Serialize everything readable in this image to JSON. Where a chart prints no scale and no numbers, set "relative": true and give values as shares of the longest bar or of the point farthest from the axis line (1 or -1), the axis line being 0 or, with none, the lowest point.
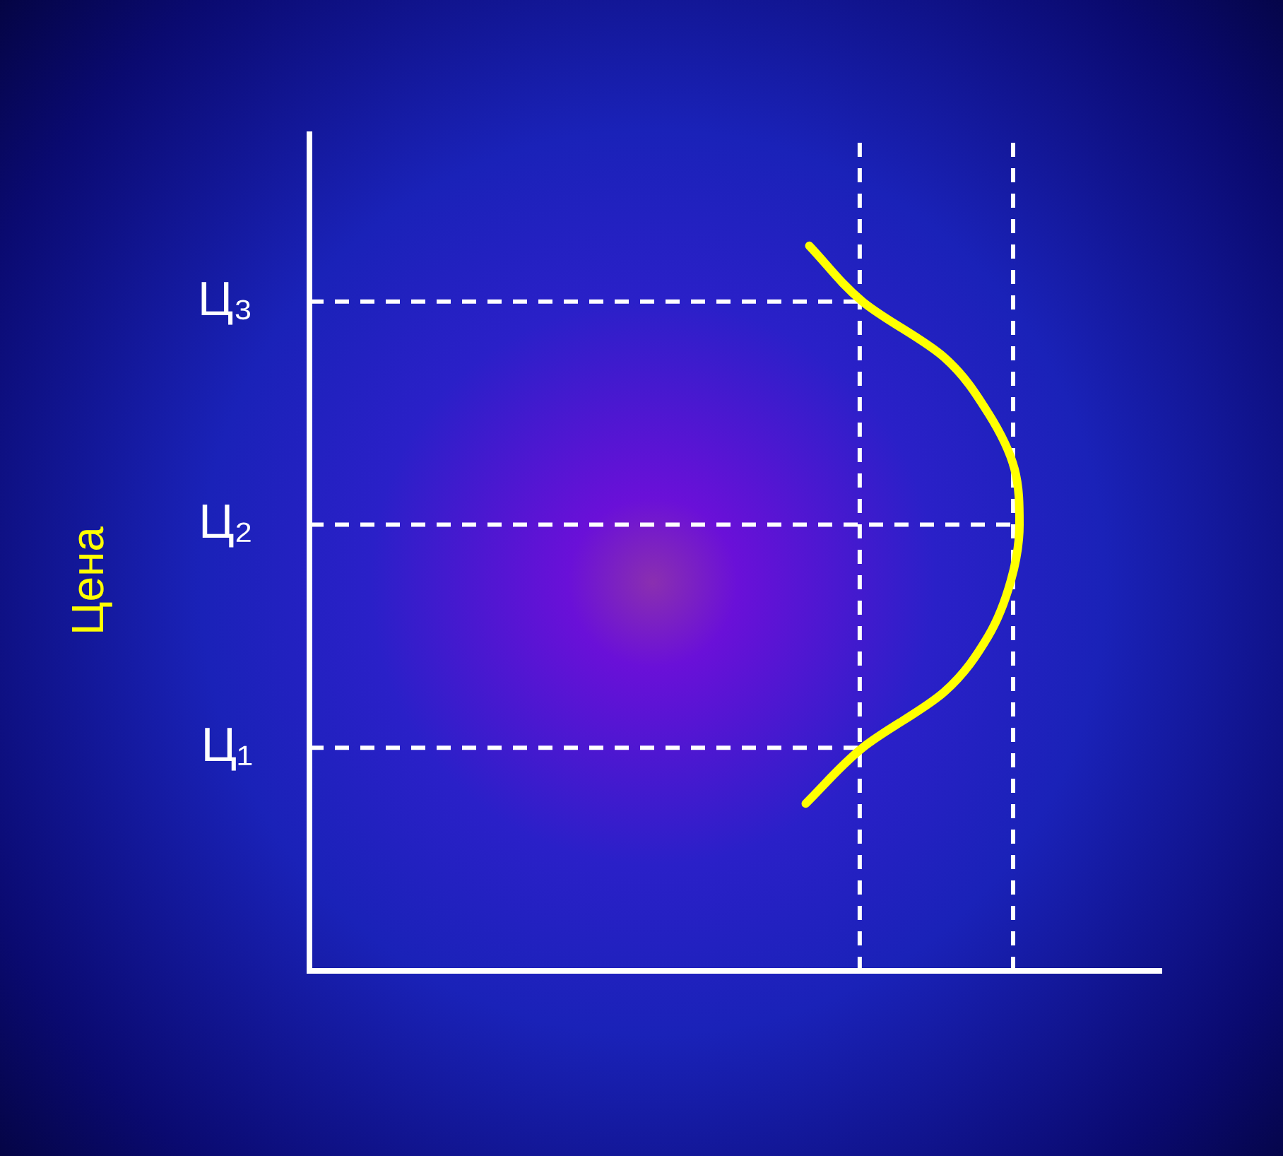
{
  "chart_data": {
    "type": "line",
    "orientation": "horizontal",
    "ylabel": "Цена",
    "relative": true,
    "tick_labels": "y",
    "grid": false,
    "legend": false,
    "marker": "none",
    "line_style": "solid",
    "categories": [
      null,
      null,
      null,
      "Ц₃",
      null,
      null,
      null,
      "Ц₂",
      null,
      null,
      null,
      "Ц₁",
      null,
      null,
      null,
      null
    ],
    "series": [
      {
        "color": "#ffff00",
        "values": [
          null,
          null,
          0.704,
          0.779,
          0.894,
          0.956,
          0.993,
          1,
          0.988,
          0.956,
          0.894,
          0.779,
          0.699,
          null,
          null,
          null
        ]
      }
    ],
    "ref_lines": [
      {
        "axis": "y",
        "value": "Ц₃",
        "color": "#ffffff",
        "line_style": "dashed"
      },
      {
        "axis": "y",
        "value": "Ц₂",
        "color": "#ffffff",
        "line_style": "dashed"
      },
      {
        "axis": "y",
        "value": "Ц₁",
        "color": "#ffffff",
        "line_style": "dashed"
      },
      {
        "axis": "x",
        "value": 0.775,
        "color": "#ffffff",
        "line_style": "dashed"
      },
      {
        "axis": "x",
        "value": 0.991,
        "color": "#ffffff",
        "line_style": "dashed"
      }
    ]
  }
}
